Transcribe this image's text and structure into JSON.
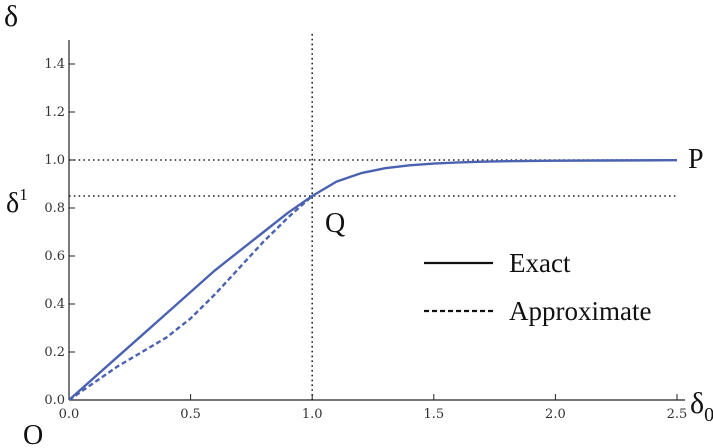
{
  "chart_data": {
    "type": "line",
    "title": "",
    "xlabel": "δ",
    "xlabel_subscript": "0",
    "ylabel": "δ",
    "xlim": [
      0,
      2.5
    ],
    "ylim": [
      0,
      1.5
    ],
    "x_ticks": [
      "0.0",
      "0.5",
      "1.0",
      "1.5",
      "2.0",
      "2.5"
    ],
    "y_ticks": [
      "0.0",
      "0.2",
      "0.4",
      "0.6",
      "0.8",
      "1.0",
      "1.2",
      "1.4"
    ],
    "y_tick_values": [
      0,
      0.2,
      0.4,
      0.6,
      0.8,
      1.0,
      1.2,
      1.4
    ],
    "x_tick_values": [
      0,
      0.5,
      1.0,
      1.5,
      2.0,
      2.5
    ],
    "grid": false,
    "line_color": "#4a62b0",
    "annotations": {
      "origin": "O",
      "P": "P",
      "Q": "Q",
      "delta1_base": "δ",
      "delta1_sup": "1"
    },
    "reference_lines": {
      "horizontal": [
        1.0,
        0.85
      ],
      "vertical": [
        1.0
      ]
    },
    "legend": {
      "position": "center-right",
      "entries": [
        {
          "label": "Exact",
          "style": "solid"
        },
        {
          "label": "Approximate",
          "style": "dashed"
        }
      ]
    },
    "series": [
      {
        "name": "Exact",
        "style": "solid",
        "x": [
          0,
          0.1,
          0.2,
          0.3,
          0.4,
          0.5,
          0.6,
          0.7,
          0.8,
          0.9,
          1.0,
          1.1,
          1.2,
          1.3,
          1.4,
          1.5,
          1.6,
          1.7,
          1.8,
          2.0,
          2.2,
          2.5
        ],
        "y": [
          0,
          0.09,
          0.18,
          0.27,
          0.36,
          0.45,
          0.54,
          0.62,
          0.7,
          0.78,
          0.85,
          0.91,
          0.945,
          0.966,
          0.978,
          0.985,
          0.99,
          0.993,
          0.995,
          0.997,
          0.998,
          0.999
        ]
      },
      {
        "name": "Approximate",
        "style": "dashed",
        "x": [
          0,
          0.1,
          0.2,
          0.3,
          0.4,
          0.5,
          0.6,
          0.7,
          0.8,
          0.9,
          1.0
        ],
        "y": [
          0,
          0.07,
          0.14,
          0.2,
          0.26,
          0.34,
          0.44,
          0.55,
          0.66,
          0.76,
          0.85
        ]
      }
    ]
  }
}
